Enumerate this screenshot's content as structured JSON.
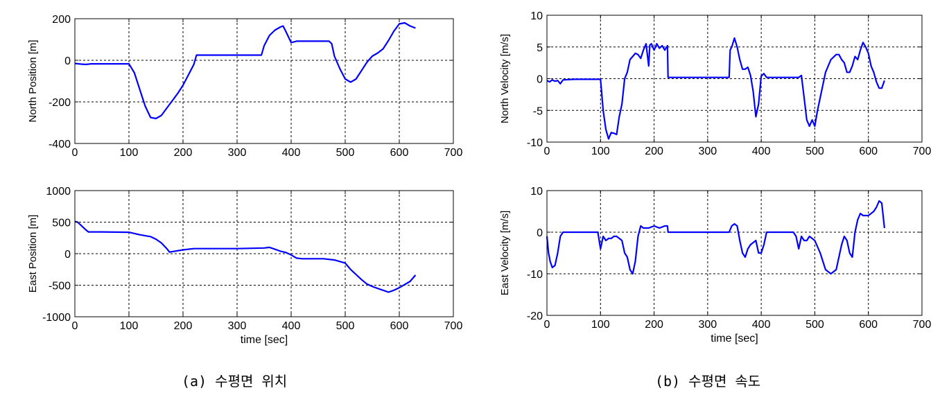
{
  "captions": [
    "(a) 수평면 위치",
    "(b) 수평면 속도"
  ],
  "colors": {
    "line": "#0000ff",
    "grid": "#000000",
    "axis": "#000000",
    "background": "#ffffff"
  },
  "chart_data": [
    {
      "type": "line",
      "title": "",
      "xlabel": "",
      "ylabel": "North Position [m]",
      "xlim": [
        0,
        700
      ],
      "ylim": [
        -400,
        200
      ],
      "xticks": [
        0,
        100,
        200,
        300,
        400,
        500,
        600,
        700
      ],
      "yticks": [
        -400,
        -200,
        0,
        200
      ],
      "grid": true,
      "series": [
        {
          "x": [
            0,
            10,
            20,
            30,
            50,
            80,
            100,
            110,
            120,
            130,
            140,
            150,
            160,
            170,
            180,
            190,
            200,
            210,
            220,
            225,
            250,
            300,
            340,
            345,
            350,
            360,
            370,
            380,
            385,
            390,
            400,
            410,
            430,
            450,
            470,
            475,
            480,
            490,
            500,
            510,
            520,
            530,
            540,
            550,
            560,
            570,
            580,
            590,
            600,
            610,
            620,
            630
          ],
          "y": [
            -15,
            -18,
            -20,
            -17,
            -17,
            -17,
            -17,
            -60,
            -140,
            -220,
            -275,
            -280,
            -265,
            -230,
            -195,
            -160,
            -120,
            -70,
            -20,
            25,
            25,
            25,
            25,
            25,
            70,
            120,
            145,
            160,
            165,
            140,
            85,
            92,
            92,
            92,
            92,
            80,
            20,
            -40,
            -90,
            -105,
            -90,
            -50,
            -10,
            20,
            35,
            55,
            95,
            140,
            175,
            180,
            165,
            155
          ]
        }
      ]
    },
    {
      "type": "line",
      "title": "",
      "xlabel": "time [sec]",
      "ylabel": "East Position [m]",
      "xlim": [
        0,
        700
      ],
      "ylim": [
        -1000,
        1000
      ],
      "xticks": [
        0,
        100,
        200,
        300,
        400,
        500,
        600,
        700
      ],
      "yticks": [
        -1000,
        -500,
        0,
        500,
        1000
      ],
      "grid": true,
      "series": [
        {
          "x": [
            0,
            5,
            10,
            20,
            25,
            50,
            100,
            120,
            140,
            150,
            160,
            170,
            175,
            200,
            220,
            250,
            300,
            350,
            360,
            370,
            380,
            390,
            400,
            410,
            420,
            450,
            460,
            480,
            500,
            510,
            520,
            530,
            540,
            550,
            560,
            570,
            580,
            590,
            600,
            620,
            630
          ],
          "y": [
            510,
            500,
            460,
            380,
            345,
            345,
            340,
            300,
            270,
            230,
            170,
            80,
            25,
            60,
            80,
            80,
            80,
            90,
            100,
            70,
            40,
            20,
            -20,
            -70,
            -80,
            -80,
            -80,
            -100,
            -150,
            -250,
            -330,
            -410,
            -480,
            -520,
            -550,
            -580,
            -610,
            -580,
            -540,
            -440,
            -340
          ]
        }
      ]
    },
    {
      "type": "line",
      "title": "",
      "xlabel": "",
      "ylabel": "North Velocity [m/s]",
      "xlim": [
        0,
        700
      ],
      "ylim": [
        -10,
        10
      ],
      "xticks": [
        0,
        100,
        200,
        300,
        400,
        500,
        600,
        700
      ],
      "yticks": [
        -10,
        -5,
        0,
        5,
        10
      ],
      "grid": true,
      "series": [
        {
          "x": [
            0,
            5,
            10,
            15,
            20,
            25,
            30,
            50,
            100,
            105,
            110,
            115,
            120,
            125,
            130,
            135,
            140,
            145,
            150,
            155,
            160,
            165,
            170,
            175,
            180,
            185,
            190,
            192,
            195,
            200,
            205,
            210,
            215,
            220,
            225,
            226,
            230,
            300,
            340,
            342,
            345,
            350,
            355,
            360,
            365,
            370,
            375,
            380,
            385,
            390,
            395,
            400,
            405,
            410,
            470,
            475,
            480,
            485,
            490,
            495,
            500,
            505,
            510,
            520,
            530,
            540,
            545,
            550,
            555,
            560,
            565,
            570,
            575,
            580,
            585,
            590,
            595,
            600,
            605,
            610,
            615,
            620,
            625,
            630
          ],
          "y": [
            -0.3,
            -0.5,
            -0.2,
            -0.4,
            -0.3,
            -0.8,
            -0.2,
            -0.1,
            -0.1,
            -5,
            -8,
            -9.5,
            -8.5,
            -8.6,
            -8.8,
            -6,
            -4,
            0,
            1,
            3,
            3.5,
            4,
            3.8,
            3.2,
            4.5,
            5.5,
            2,
            5.3,
            5.5,
            4.5,
            5.5,
            4.8,
            5.2,
            4.5,
            5.2,
            0.2,
            0.2,
            0.2,
            0.2,
            4.5,
            5,
            6.4,
            5,
            3,
            1.5,
            1.5,
            1.8,
            0.5,
            -2,
            -6,
            -4,
            0.4,
            0.8,
            0.2,
            0.2,
            0.5,
            -3,
            -6.5,
            -7.5,
            -6.5,
            -7.5,
            -5,
            -3,
            1,
            3,
            3.8,
            3.8,
            3,
            2.5,
            1,
            1,
            2,
            3.5,
            3,
            4.5,
            5.7,
            5,
            4,
            2,
            1,
            -0.5,
            -1.5,
            -1.5,
            -0.3
          ]
        }
      ]
    },
    {
      "type": "line",
      "title": "",
      "xlabel": "time [sec]",
      "ylabel": "East Velocity [m/s]",
      "xlim": [
        0,
        700
      ],
      "ylim": [
        -20,
        10
      ],
      "xticks": [
        0,
        100,
        200,
        300,
        400,
        500,
        600,
        700
      ],
      "yticks": [
        -20,
        -10,
        0,
        10
      ],
      "grid": true,
      "series": [
        {
          "x": [
            0,
            3,
            6,
            10,
            15,
            20,
            25,
            30,
            50,
            95,
            100,
            105,
            110,
            115,
            120,
            125,
            130,
            140,
            145,
            150,
            155,
            160,
            165,
            170,
            175,
            180,
            190,
            200,
            210,
            220,
            225,
            226,
            230,
            300,
            340,
            345,
            350,
            355,
            360,
            365,
            370,
            375,
            380,
            390,
            395,
            400,
            405,
            410,
            420,
            460,
            465,
            470,
            475,
            480,
            485,
            490,
            500,
            510,
            520,
            530,
            540,
            545,
            550,
            555,
            560,
            565,
            570,
            575,
            580,
            585,
            590,
            600,
            610,
            615,
            620,
            625,
            630
          ],
          "y": [
            -1,
            -5,
            -7,
            -8.5,
            -8,
            -5,
            -1,
            0,
            0,
            0,
            -4,
            -1,
            -2,
            -1.5,
            -1.5,
            -1,
            -1,
            -2,
            -5,
            -6,
            -9,
            -10,
            -7,
            -1,
            1.5,
            1,
            1,
            1.5,
            1,
            1.5,
            1.5,
            0,
            0,
            0,
            0,
            1.5,
            2,
            1.5,
            -2,
            -5,
            -6,
            -4,
            -3,
            -2,
            -5,
            -5,
            -3,
            0,
            0,
            0,
            -1,
            -4,
            -1,
            -2,
            -2,
            -1,
            -2,
            -5,
            -9,
            -10,
            -9,
            -6,
            -3,
            -1,
            -2,
            -5,
            -6,
            0,
            3,
            4.5,
            4,
            4,
            5,
            6,
            7.5,
            7,
            1
          ]
        }
      ]
    }
  ]
}
